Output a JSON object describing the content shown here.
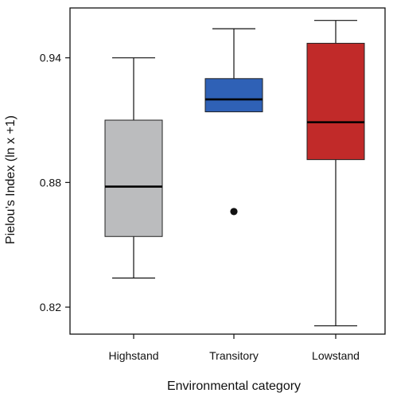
{
  "chart_data": {
    "type": "boxplot",
    "title": "",
    "xlabel": "Environmental category",
    "ylabel": "Pielou’s Index (ln x +1)",
    "ylim": [
      0.807,
      0.964
    ],
    "yticks": [
      0.82,
      0.88,
      0.94
    ],
    "ytick_labels": [
      "0.82",
      "0.88",
      "0.94"
    ],
    "categories": [
      "Highstand",
      "Transitory",
      "Lowstand"
    ],
    "grid": false,
    "legend": "none",
    "colors": {
      "Highstand": "#bbbcbe",
      "Transitory": "#2f61b6",
      "Lowstand": "#c12a29"
    },
    "series": [
      {
        "category": "Highstand",
        "whisker_low": 0.834,
        "q1": 0.854,
        "median": 0.878,
        "q3": 0.91,
        "whisker_high": 0.94,
        "outliers": []
      },
      {
        "category": "Transitory",
        "whisker_low": 0.914,
        "q1": 0.914,
        "median": 0.92,
        "q3": 0.93,
        "whisker_high": 0.954,
        "outliers": [
          0.866
        ]
      },
      {
        "category": "Lowstand",
        "whisker_low": 0.811,
        "q1": 0.891,
        "median": 0.909,
        "q3": 0.947,
        "whisker_high": 0.958,
        "outliers": []
      }
    ]
  }
}
